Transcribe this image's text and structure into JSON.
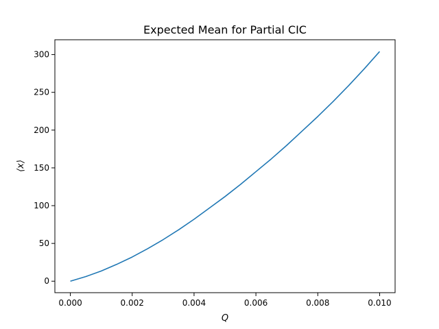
{
  "chart_data": {
    "type": "line",
    "title": "Expected Mean for Partial CIC",
    "xlabel": "Q",
    "ylabel": "⟨x⟩",
    "xlim": [
      -0.0005,
      0.0105
    ],
    "ylim": [
      -15.2,
      319.6
    ],
    "xticks": [
      0.0,
      0.002,
      0.004,
      0.006,
      0.008,
      0.01
    ],
    "xtick_labels": [
      "0.000",
      "0.002",
      "0.004",
      "0.006",
      "0.008",
      "0.010"
    ],
    "yticks": [
      0,
      50,
      100,
      150,
      200,
      250,
      300
    ],
    "ytick_labels": [
      "0",
      "50",
      "100",
      "150",
      "200",
      "250",
      "300"
    ],
    "grid": false,
    "series": [
      {
        "color": "#1f77b4",
        "x": [
          0.0,
          0.0005,
          0.001,
          0.0015,
          0.002,
          0.0025,
          0.003,
          0.0035,
          0.004,
          0.0045,
          0.005,
          0.0055,
          0.006,
          0.0065,
          0.007,
          0.0075,
          0.008,
          0.0085,
          0.009,
          0.0095,
          0.01
        ],
        "y": [
          0,
          6.1,
          13.5,
          22.3,
          32.0,
          43.0,
          55.0,
          68.0,
          82.0,
          97.0,
          112.0,
          128.0,
          145.0,
          162.0,
          180.0,
          199.0,
          218.0,
          238.0,
          259.0,
          281.0,
          304.0
        ]
      }
    ]
  }
}
